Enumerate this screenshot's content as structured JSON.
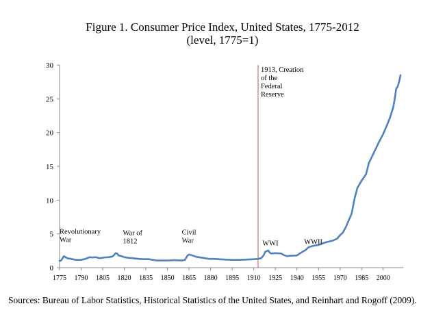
{
  "chart_data": {
    "type": "line",
    "title": "Figure 1. Consumer Price Index, United States, 1775-2012",
    "subtitle": "(level, 1775=1)",
    "xlabel": "",
    "ylabel": "",
    "xlim": [
      1775,
      2012
    ],
    "ylim": [
      0,
      30
    ],
    "y_ticks": [
      0,
      5,
      10,
      15,
      20,
      25,
      30
    ],
    "x_ticks": [
      1775,
      1790,
      1805,
      1820,
      1835,
      1850,
      1865,
      1880,
      1895,
      1910,
      1925,
      1940,
      1955,
      1970,
      1985,
      2000
    ],
    "grid": false,
    "line_color": "#4f81bd",
    "marker_line_color": "#c0504d",
    "series": [
      {
        "x": [
          1775,
          1776,
          1777,
          1778,
          1779,
          1780,
          1781,
          1782,
          1783,
          1785,
          1787,
          1790,
          1793,
          1796,
          1798,
          1800,
          1803,
          1806,
          1809,
          1811,
          1812,
          1813,
          1814,
          1815,
          1816,
          1818,
          1820,
          1823,
          1826,
          1830,
          1834,
          1837,
          1840,
          1843,
          1846,
          1850,
          1855,
          1860,
          1862,
          1863,
          1864,
          1865,
          1866,
          1868,
          1870,
          1873,
          1876,
          1879,
          1882,
          1886,
          1890,
          1895,
          1900,
          1905,
          1910,
          1913,
          1915,
          1916,
          1917,
          1918,
          1920,
          1921,
          1922,
          1925,
          1929,
          1931,
          1933,
          1935,
          1940,
          1942,
          1944,
          1946,
          1948,
          1950,
          1953,
          1955,
          1960,
          1965,
          1968,
          1970,
          1972,
          1974,
          1976,
          1978,
          1980,
          1982,
          1985,
          1988,
          1990,
          1993,
          1995,
          1997,
          2000,
          2003,
          2005,
          2007,
          2008,
          2009,
          2010,
          2011,
          2012
        ],
        "values": [
          1.0,
          1.05,
          1.35,
          1.7,
          1.55,
          1.45,
          1.35,
          1.35,
          1.3,
          1.2,
          1.15,
          1.15,
          1.3,
          1.55,
          1.5,
          1.55,
          1.4,
          1.5,
          1.55,
          1.6,
          1.7,
          1.9,
          2.15,
          2.1,
          1.8,
          1.7,
          1.55,
          1.45,
          1.4,
          1.3,
          1.25,
          1.25,
          1.15,
          1.05,
          1.05,
          1.05,
          1.1,
          1.05,
          1.15,
          1.45,
          1.8,
          1.95,
          1.9,
          1.75,
          1.6,
          1.5,
          1.4,
          1.3,
          1.3,
          1.25,
          1.2,
          1.15,
          1.15,
          1.2,
          1.25,
          1.3,
          1.4,
          1.6,
          1.9,
          2.35,
          2.55,
          2.25,
          2.1,
          2.15,
          2.1,
          1.85,
          1.7,
          1.75,
          1.8,
          2.1,
          2.35,
          2.6,
          3.0,
          3.15,
          3.3,
          3.35,
          3.75,
          4.0,
          4.3,
          4.8,
          5.2,
          6.0,
          7.0,
          8.0,
          10.2,
          11.8,
          12.9,
          13.8,
          15.5,
          16.8,
          17.7,
          18.6,
          19.8,
          21.3,
          22.4,
          23.8,
          25.0,
          26.5,
          26.8,
          27.5,
          28.5
        ]
      }
    ],
    "reference_lines": [
      {
        "x": 1913,
        "color": "#c0504d"
      }
    ],
    "annotations": [
      {
        "lines": [
          "Revolutionary",
          "War"
        ],
        "x": 1775,
        "y": 5.0
      },
      {
        "lines": [
          "War of",
          "1812"
        ],
        "x": 1819,
        "y": 4.8
      },
      {
        "lines": [
          "Civil",
          "War"
        ],
        "x": 1860,
        "y": 4.9
      },
      {
        "lines": [
          "1913, Creation",
          "of the",
          "Federal",
          "Reserve"
        ],
        "x": 1913,
        "y": 29.0
      },
      {
        "lines": [
          "WWI"
        ],
        "x": 1916,
        "y": 3.3
      },
      {
        "lines": [
          "WWII"
        ],
        "x": 1945,
        "y": 3.5
      }
    ]
  },
  "source_note": "Sources: Bureau of Labor Statistics, Historical Statistics of the United States, and Reinhart and Rogoff (2009)."
}
